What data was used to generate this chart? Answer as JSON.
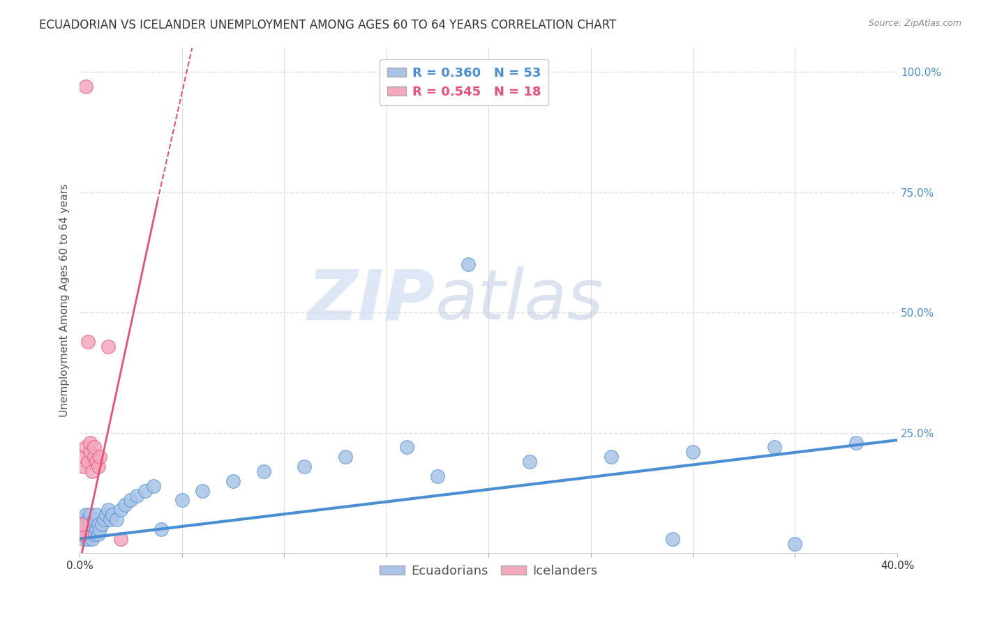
{
  "title": "ECUADORIAN VS ICELANDER UNEMPLOYMENT AMONG AGES 60 TO 64 YEARS CORRELATION CHART",
  "source": "Source: ZipAtlas.com",
  "ylabel": "Unemployment Among Ages 60 to 64 years",
  "xlim": [
    0.0,
    0.4
  ],
  "ylim": [
    0.0,
    1.05
  ],
  "xticks": [
    0.0,
    0.05,
    0.1,
    0.15,
    0.2,
    0.25,
    0.3,
    0.35,
    0.4
  ],
  "xticklabels": [
    "0.0%",
    "",
    "",
    "",
    "",
    "",
    "",
    "",
    "40.0%"
  ],
  "yticks_right": [
    0.0,
    0.25,
    0.5,
    0.75,
    1.0
  ],
  "yticklabels_right": [
    "",
    "25.0%",
    "50.0%",
    "75.0%",
    "100.0%"
  ],
  "grid_color": "#dddddd",
  "background_color": "#ffffff",
  "ecuadorians_color": "#aac4e8",
  "icelanders_color": "#f4a8bc",
  "blue_line_color": "#4a8fd4",
  "pink_line_color": "#e8507a",
  "legend_blue_label": "R = 0.360   N = 53",
  "legend_pink_label": "R = 0.545   N = 18",
  "legend_ecuadorians": "Ecuadorians",
  "legend_icelanders": "Icelanders",
  "watermark_zip": "ZIP",
  "watermark_atlas": "atlas",
  "blue_scatter_x": [
    0.001,
    0.001,
    0.002,
    0.002,
    0.002,
    0.003,
    0.003,
    0.003,
    0.004,
    0.004,
    0.004,
    0.005,
    0.005,
    0.005,
    0.006,
    0.006,
    0.007,
    0.007,
    0.008,
    0.008,
    0.009,
    0.009,
    0.01,
    0.011,
    0.012,
    0.013,
    0.014,
    0.015,
    0.016,
    0.018,
    0.02,
    0.022,
    0.025,
    0.028,
    0.032,
    0.036,
    0.04,
    0.05,
    0.06,
    0.075,
    0.09,
    0.11,
    0.13,
    0.16,
    0.19,
    0.22,
    0.26,
    0.3,
    0.34,
    0.38,
    0.175,
    0.29,
    0.35
  ],
  "blue_scatter_y": [
    0.04,
    0.06,
    0.03,
    0.05,
    0.07,
    0.04,
    0.06,
    0.08,
    0.03,
    0.05,
    0.07,
    0.04,
    0.06,
    0.08,
    0.03,
    0.05,
    0.04,
    0.07,
    0.05,
    0.08,
    0.04,
    0.06,
    0.05,
    0.06,
    0.07,
    0.08,
    0.09,
    0.07,
    0.08,
    0.07,
    0.09,
    0.1,
    0.11,
    0.12,
    0.13,
    0.14,
    0.05,
    0.11,
    0.13,
    0.15,
    0.17,
    0.18,
    0.2,
    0.22,
    0.6,
    0.19,
    0.2,
    0.21,
    0.22,
    0.23,
    0.16,
    0.03,
    0.02
  ],
  "pink_scatter_x": [
    0.001,
    0.001,
    0.002,
    0.002,
    0.003,
    0.003,
    0.004,
    0.004,
    0.005,
    0.005,
    0.006,
    0.007,
    0.007,
    0.008,
    0.009,
    0.01,
    0.014,
    0.02
  ],
  "pink_scatter_y": [
    0.04,
    0.06,
    0.18,
    0.2,
    0.22,
    0.97,
    0.19,
    0.44,
    0.21,
    0.23,
    0.17,
    0.2,
    0.22,
    0.19,
    0.18,
    0.2,
    0.43,
    0.03
  ],
  "blue_line_x0": 0.0,
  "blue_line_x1": 0.4,
  "blue_line_y0": 0.03,
  "blue_line_y1": 0.235,
  "pink_line_x0": 0.0,
  "pink_line_x1": 0.055,
  "pink_line_y0": -0.02,
  "pink_line_y1": 1.05,
  "pink_line_dashed_x0": 0.038,
  "pink_line_dashed_x1": 0.055,
  "pink_line_dashed_y0": 0.73,
  "pink_line_dashed_y1": 1.05,
  "title_fontsize": 12,
  "axis_label_fontsize": 11,
  "tick_fontsize": 11,
  "legend_fontsize": 13
}
